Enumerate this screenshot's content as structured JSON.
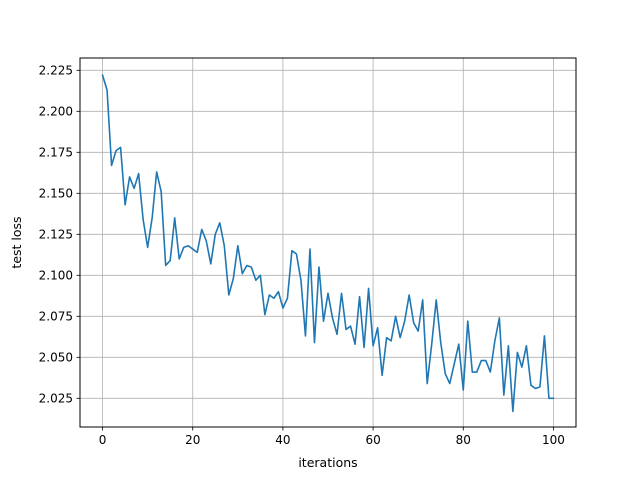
{
  "chart_data": {
    "type": "line",
    "title": "",
    "xlabel": "iterations",
    "ylabel": "test loss",
    "xlim": [
      -5,
      105
    ],
    "ylim": [
      2.0075,
      2.2325
    ],
    "xticks": [
      0,
      20,
      40,
      60,
      80,
      100
    ],
    "yticks": [
      2.025,
      2.05,
      2.075,
      2.1,
      2.125,
      2.15,
      2.175,
      2.2,
      2.225
    ],
    "xtick_labels": [
      "0",
      "20",
      "40",
      "60",
      "80",
      "100"
    ],
    "ytick_labels": [
      "2.025",
      "2.050",
      "2.075",
      "2.100",
      "2.125",
      "2.150",
      "2.175",
      "2.200",
      "2.225"
    ],
    "grid": true,
    "legend": "none",
    "series": [
      {
        "color": "#1f77b4",
        "x": [
          0,
          1,
          2,
          3,
          4,
          5,
          6,
          7,
          8,
          9,
          10,
          11,
          12,
          13,
          14,
          15,
          16,
          17,
          18,
          19,
          20,
          21,
          22,
          23,
          24,
          25,
          26,
          27,
          28,
          29,
          30,
          31,
          32,
          33,
          34,
          35,
          36,
          37,
          38,
          39,
          40,
          41,
          42,
          43,
          44,
          45,
          46,
          47,
          48,
          49,
          50,
          51,
          52,
          53,
          54,
          55,
          56,
          57,
          58,
          59,
          60,
          61,
          62,
          63,
          64,
          65,
          66,
          67,
          68,
          69,
          70,
          71,
          72,
          73,
          74,
          75,
          76,
          77,
          78,
          79,
          80,
          81,
          82,
          83,
          84,
          85,
          86,
          87,
          88,
          89,
          90,
          91,
          92,
          93,
          94,
          95,
          96,
          97,
          98,
          99,
          100
        ],
        "y": [
          2.222,
          2.213,
          2.167,
          2.176,
          2.178,
          2.143,
          2.16,
          2.153,
          2.162,
          2.134,
          2.117,
          2.135,
          2.163,
          2.151,
          2.106,
          2.109,
          2.135,
          2.11,
          2.117,
          2.118,
          2.116,
          2.114,
          2.128,
          2.121,
          2.107,
          2.125,
          2.132,
          2.118,
          2.088,
          2.098,
          2.118,
          2.101,
          2.106,
          2.105,
          2.097,
          2.1,
          2.076,
          2.088,
          2.086,
          2.09,
          2.08,
          2.086,
          2.115,
          2.113,
          2.097,
          2.063,
          2.116,
          2.059,
          2.105,
          2.072,
          2.089,
          2.074,
          2.064,
          2.089,
          2.067,
          2.069,
          2.058,
          2.087,
          2.056,
          2.092,
          2.057,
          2.068,
          2.039,
          2.062,
          2.06,
          2.075,
          2.062,
          2.072,
          2.088,
          2.071,
          2.066,
          2.085,
          2.034,
          2.058,
          2.085,
          2.059,
          2.04,
          2.034,
          2.046,
          2.058,
          2.03,
          2.072,
          2.041,
          2.041,
          2.048,
          2.048,
          2.041,
          2.06,
          2.074,
          2.027,
          2.057,
          2.017,
          2.053,
          2.044,
          2.057,
          2.033,
          2.031,
          2.032,
          2.063,
          2.025,
          2.025
        ]
      }
    ]
  }
}
